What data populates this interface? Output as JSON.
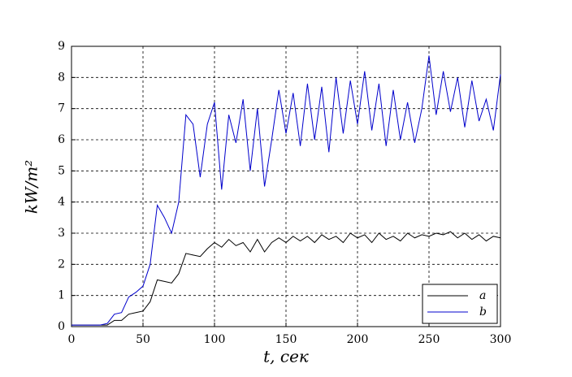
{
  "chart_data": {
    "type": "line",
    "xlabel": "t, сек",
    "ylabel": "kW/m²",
    "x": [
      0,
      5,
      10,
      15,
      20,
      25,
      30,
      35,
      40,
      45,
      50,
      55,
      60,
      65,
      70,
      75,
      80,
      85,
      90,
      95,
      100,
      105,
      110,
      115,
      120,
      125,
      130,
      135,
      140,
      145,
      150,
      155,
      160,
      165,
      170,
      175,
      180,
      185,
      190,
      195,
      200,
      205,
      210,
      215,
      220,
      225,
      230,
      235,
      240,
      245,
      250,
      255,
      260,
      265,
      270,
      275,
      280,
      285,
      290,
      295,
      300
    ],
    "series": [
      {
        "name": "a",
        "color": "#000000",
        "values": [
          0.05,
          0.05,
          0.05,
          0.05,
          0.05,
          0.05,
          0.2,
          0.2,
          0.4,
          0.45,
          0.5,
          0.8,
          1.5,
          1.45,
          1.4,
          1.7,
          2.35,
          2.3,
          2.25,
          2.5,
          2.7,
          2.55,
          2.8,
          2.6,
          2.7,
          2.4,
          2.8,
          2.4,
          2.7,
          2.85,
          2.7,
          2.9,
          2.75,
          2.9,
          2.7,
          2.95,
          2.8,
          2.9,
          2.7,
          3.0,
          2.85,
          2.95,
          2.7,
          3.0,
          2.8,
          2.9,
          2.75,
          3.0,
          2.85,
          2.95,
          2.9,
          3.0,
          2.95,
          3.05,
          2.85,
          3.0,
          2.8,
          2.95,
          2.75,
          2.9,
          2.85
        ]
      },
      {
        "name": "b",
        "color": "#0000cc",
        "values": [
          0.05,
          0.05,
          0.05,
          0.05,
          0.05,
          0.1,
          0.4,
          0.45,
          0.95,
          1.1,
          1.3,
          2.0,
          3.9,
          3.5,
          3.0,
          4.0,
          6.8,
          6.5,
          4.8,
          6.5,
          7.2,
          4.4,
          6.8,
          5.9,
          7.3,
          5.0,
          7.0,
          4.5,
          6.0,
          7.6,
          6.2,
          7.5,
          5.8,
          7.8,
          6.0,
          7.7,
          5.6,
          8.0,
          6.2,
          7.9,
          6.5,
          8.2,
          6.3,
          7.8,
          5.8,
          7.6,
          6.0,
          7.2,
          5.9,
          7.0,
          8.7,
          6.8,
          8.2,
          6.9,
          8.0,
          6.4,
          7.9,
          6.6,
          7.3,
          6.3,
          8.1
        ]
      }
    ],
    "xlim": [
      0,
      300
    ],
    "xticks": [
      0,
      50,
      100,
      150,
      200,
      250,
      300
    ],
    "ylim": [
      0,
      9
    ],
    "yticks": [
      0,
      1,
      2,
      3,
      4,
      5,
      6,
      7,
      8,
      9
    ],
    "grid": true,
    "legend": "lower right"
  }
}
